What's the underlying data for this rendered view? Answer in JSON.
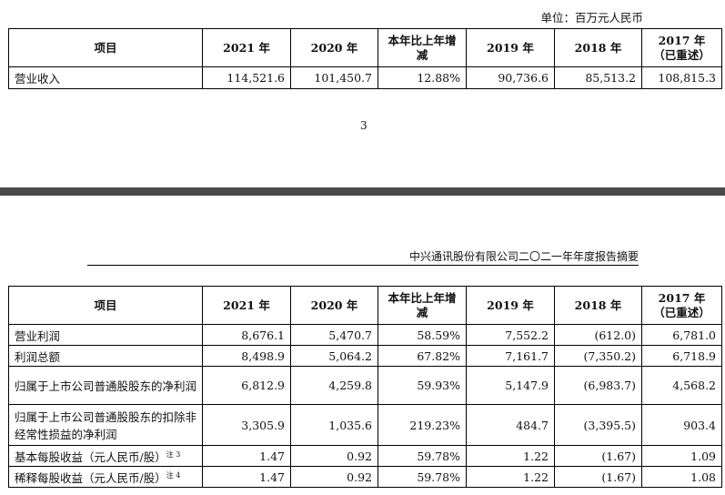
{
  "page1": {
    "unit": "单位：百万元人民币",
    "headers": [
      "项目",
      "2021 年",
      "2020 年",
      "本年比上年增减",
      "2019 年",
      "2018 年",
      "2017 年（已重述）"
    ],
    "rows": [
      [
        "营业收入",
        "114,521.6",
        "101,450.7",
        "12.88%",
        "90,736.6",
        "85,513.2",
        "108,815.3"
      ]
    ],
    "page_number": "3"
  },
  "page2": {
    "running_header": "中兴通讯股份有限公司二〇二一年年度报告摘要",
    "headers": [
      "项目",
      "2021 年",
      "2020 年",
      "本年比上年增减",
      "2019 年",
      "2018 年",
      "2017 年（已重述）"
    ],
    "rows": [
      [
        "营业利润",
        "8,676.1",
        "5,470.7",
        "58.59%",
        "7,552.2",
        "(612.0)",
        "6,781.0"
      ],
      [
        "利润总额",
        "8,498.9",
        "5,064.2",
        "67.82%",
        "7,161.7",
        "(7,350.2)",
        "6,718.9"
      ],
      [
        "归属于上市公司普通股股东的净利润",
        "6,812.9",
        "4,259.8",
        "59.93%",
        "5,147.9",
        "(6,983.7)",
        "4,568.2"
      ],
      [
        "归属于上市公司普通股股东的扣除非经常性损益的净利润",
        "3,305.9",
        "1,035.6",
        "219.23%",
        "484.7",
        "(3,395.5)",
        "903.4"
      ],
      [
        "基本每股收益（元人民币/股）",
        "1.47",
        "0.92",
        "59.78%",
        "1.22",
        "(1.67)",
        "1.09"
      ],
      [
        "稀释每股收益（元人民币/股）",
        "1.47",
        "0.92",
        "59.78%",
        "1.22",
        "(1.67)",
        "1.08"
      ]
    ],
    "notes": [
      "注 3",
      "注 4"
    ]
  }
}
